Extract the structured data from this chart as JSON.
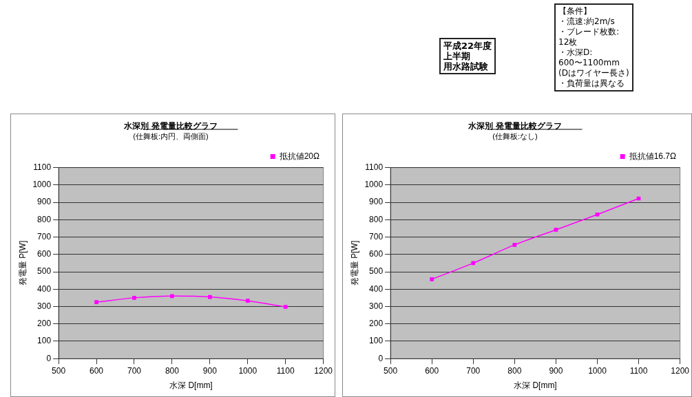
{
  "chart_data": [
    {
      "type": "other",
      "annotations": [
        "平成22年度",
        "上半期",
        "用水路試験"
      ]
    },
    {
      "type": "other",
      "annotations": [
        "【条件】",
        "・流速:約2m/s",
        "・ブレード枚数:",
        "12枚",
        "・水深D:",
        "600〜1100mm",
        "(Dはワイヤー長さ)",
        "・負荷量は異なる"
      ]
    },
    {
      "type": "line",
      "title": "水深別 発電量比較グラフ",
      "subtitle": "(仕舞板:内円、両側面)",
      "xlabel": "水深 D[mm]",
      "ylabel": "発電量 P[W]",
      "x": [
        600,
        700,
        800,
        900,
        1000,
        1100
      ],
      "series": [
        {
          "name": "抵抗値20Ω",
          "color": "#ff00ff",
          "values": [
            325,
            350,
            360,
            355,
            333,
            298
          ]
        }
      ],
      "xlim": [
        500,
        1200
      ],
      "xticks": [
        500,
        600,
        700,
        800,
        900,
        1000,
        1100,
        1200
      ],
      "ylim": [
        0,
        1100
      ],
      "yticks": [
        0,
        100,
        200,
        300,
        400,
        500,
        600,
        700,
        800,
        900,
        1000,
        1100
      ],
      "grid": "y",
      "legend": "top right",
      "marker": "square",
      "line_style": "solid"
    },
    {
      "type": "line",
      "title": "水深別 発電量比較グラフ",
      "subtitle": "(仕舞板:なし)",
      "xlabel": "水深 D[mm]",
      "ylabel": "発電量 P[W]",
      "x": [
        600,
        700,
        800,
        900,
        1000,
        1100
      ],
      "series": [
        {
          "name": "抵抗値16.7Ω",
          "color": "#ff00ff",
          "values": [
            457,
            550,
            655,
            742,
            830,
            922
          ]
        }
      ],
      "xlim": [
        500,
        1200
      ],
      "xticks": [
        500,
        600,
        700,
        800,
        900,
        1000,
        1100,
        1200
      ],
      "ylim": [
        0,
        1100
      ],
      "yticks": [
        0,
        100,
        200,
        300,
        400,
        500,
        600,
        700,
        800,
        900,
        1000,
        1100
      ],
      "grid": "y",
      "legend": "top right",
      "marker": "square",
      "line_style": "solid"
    }
  ]
}
